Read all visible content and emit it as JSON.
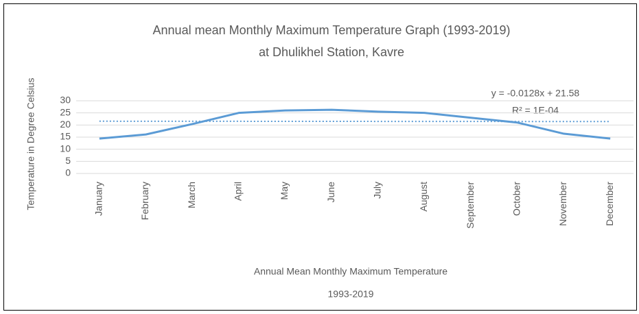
{
  "chart_data": {
    "type": "line",
    "title": [
      "Annual mean Monthly Maximum Temperature Graph (1993-2019)",
      "at Dhulikhel Station, Kavre"
    ],
    "xlabel": [
      "Annual Mean Monthly Maximum Temperature",
      "1993-2019"
    ],
    "ylabel": "Temperature in Degree Celsius",
    "categories": [
      "January",
      "February",
      "March",
      "April",
      "May",
      "June",
      "July",
      "August",
      "September",
      "October",
      "November",
      "December"
    ],
    "series": [
      {
        "name": "Annual Mean Monthly Maximum Temperature",
        "color": "#5b9bd5",
        "values": [
          14.4,
          16.1,
          20.4,
          25,
          26,
          26.3,
          25.5,
          25,
          23,
          21,
          16.4,
          14.4
        ]
      }
    ],
    "trendline": {
      "slope": -0.0128,
      "intercept": 21.58,
      "equation": "y = -0.0128x + 21.58",
      "r2": "R² = 1E-04"
    },
    "ylim": [
      0,
      30
    ],
    "yticks": [
      0,
      5,
      10,
      15,
      20,
      25,
      30
    ],
    "grid": true
  }
}
